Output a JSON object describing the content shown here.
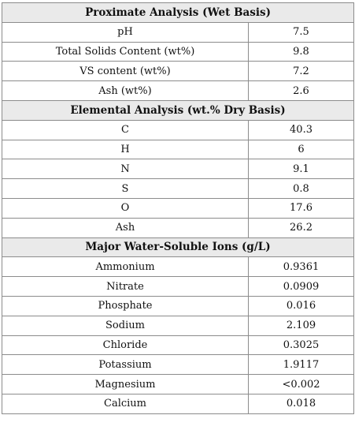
{
  "sections": [
    {
      "title": "Proximate Analysis (Wet Basis)",
      "rows": [
        {
          "label": "pH",
          "value": "7.5"
        },
        {
          "label": "Total Solids Content (wt%)",
          "value": "9.8"
        },
        {
          "label": "VS content (wt%)",
          "value": "7.2"
        },
        {
          "label": "Ash (wt%)",
          "value": "2.6"
        }
      ]
    },
    {
      "title": "Elemental Analysis (wt.% Dry Basis)",
      "rows": [
        {
          "label": "C",
          "value": "40.3"
        },
        {
          "label": "H",
          "value": "6"
        },
        {
          "label": "N",
          "value": "9.1"
        },
        {
          "label": "S",
          "value": "0.8"
        },
        {
          "label": "O",
          "value": "17.6"
        },
        {
          "label": "Ash",
          "value": "26.2"
        }
      ]
    },
    {
      "title": "Major Water-Soluble Ions (g/L)",
      "rows": [
        {
          "label": "Ammonium",
          "value": "0.9361"
        },
        {
          "label": "Nitrate",
          "value": "0.0909"
        },
        {
          "label": "Phosphate",
          "value": "0.016"
        },
        {
          "label": "Sodium",
          "value": "2.109"
        },
        {
          "label": "Chloride",
          "value": "0.3025"
        },
        {
          "label": "Potassium",
          "value": "1.9117"
        },
        {
          "label": "Magnesium",
          "value": "<0.002"
        },
        {
          "label": "Calcium",
          "value": "0.018"
        }
      ]
    }
  ]
}
